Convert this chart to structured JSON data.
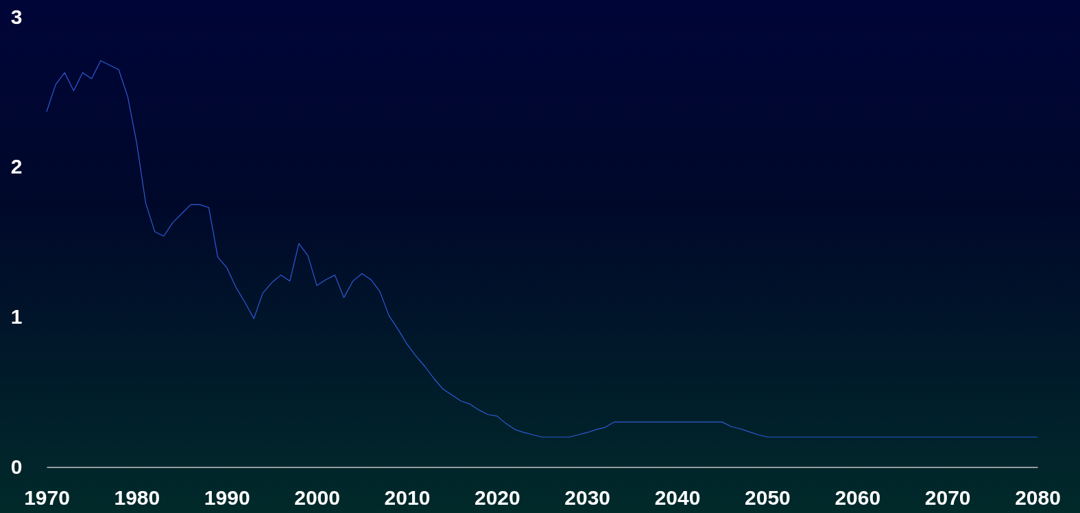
{
  "chart_data": {
    "type": "line",
    "x": [
      1970,
      1971,
      1972,
      1973,
      1974,
      1975,
      1976,
      1977,
      1978,
      1979,
      1980,
      1981,
      1982,
      1983,
      1984,
      1985,
      1986,
      1987,
      1988,
      1989,
      1990,
      1991,
      1992,
      1993,
      1994,
      1995,
      1996,
      1997,
      1998,
      1999,
      2000,
      2001,
      2002,
      2003,
      2004,
      2005,
      2006,
      2007,
      2008,
      2009,
      2010,
      2011,
      2012,
      2013,
      2014,
      2015,
      2016,
      2017,
      2018,
      2019,
      2020,
      2021,
      2022,
      2023,
      2024,
      2025,
      2026,
      2027,
      2028,
      2029,
      2030,
      2031,
      2032,
      2033,
      2034,
      2035,
      2036,
      2037,
      2038,
      2039,
      2040,
      2041,
      2042,
      2043,
      2044,
      2045,
      2046,
      2047,
      2048,
      2049,
      2050,
      2051,
      2052,
      2053,
      2054,
      2055,
      2056,
      2057,
      2058,
      2059,
      2060,
      2061,
      2062,
      2063,
      2064,
      2065,
      2066,
      2067,
      2068,
      2069,
      2070,
      2071,
      2072,
      2073,
      2074,
      2075,
      2076,
      2077,
      2078,
      2079,
      2080
    ],
    "series": [
      {
        "color": "#2e5bd8",
        "values": [
          2.37,
          2.55,
          2.63,
          2.51,
          2.63,
          2.59,
          2.71,
          2.68,
          2.65,
          2.47,
          2.16,
          1.76,
          1.57,
          1.54,
          1.63,
          1.69,
          1.75,
          1.75,
          1.73,
          1.4,
          1.33,
          1.2,
          1.1,
          0.99,
          1.16,
          1.23,
          1.28,
          1.24,
          1.49,
          1.41,
          1.21,
          1.25,
          1.28,
          1.13,
          1.24,
          1.29,
          1.25,
          1.17,
          1.01,
          0.92,
          0.82,
          0.74,
          0.67,
          0.59,
          0.52,
          0.48,
          0.44,
          0.42,
          0.38,
          0.35,
          0.34,
          0.29,
          0.25,
          0.23,
          0.215,
          0.2,
          0.2,
          0.2,
          0.2,
          0.215,
          0.23,
          0.25,
          0.265,
          0.3,
          0.3,
          0.3,
          0.3,
          0.3,
          0.3,
          0.3,
          0.3,
          0.3,
          0.3,
          0.3,
          0.3,
          0.3,
          0.27,
          0.255,
          0.235,
          0.215,
          0.2,
          0.2,
          0.2,
          0.2,
          0.2,
          0.2,
          0.2,
          0.2,
          0.2,
          0.2,
          0.2,
          0.2,
          0.2,
          0.2,
          0.2,
          0.2,
          0.2,
          0.2,
          0.2,
          0.2,
          0.2,
          0.2,
          0.2,
          0.2,
          0.2,
          0.2,
          0.2,
          0.2,
          0.2,
          0.2,
          0.2
        ]
      }
    ],
    "xlim": [
      1970,
      2080
    ],
    "xticks": [
      1970,
      1980,
      1990,
      2000,
      2010,
      2020,
      2030,
      2040,
      2050,
      2060,
      2070,
      2080
    ],
    "ylim": [
      0,
      3
    ],
    "yticks": [
      0,
      1,
      2,
      3
    ]
  }
}
